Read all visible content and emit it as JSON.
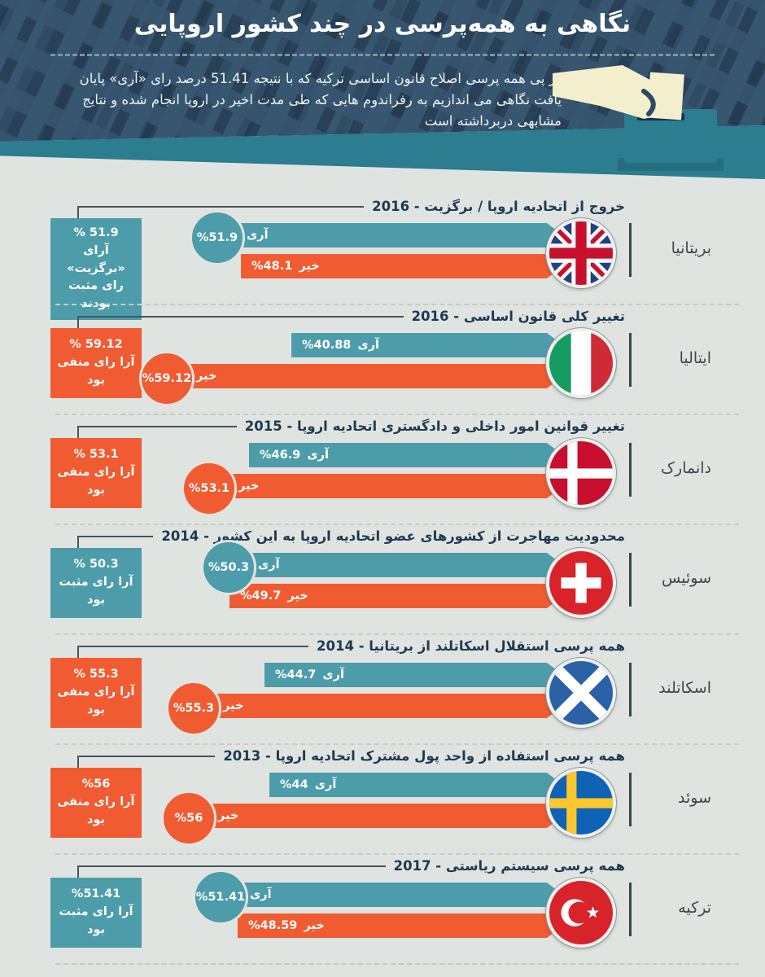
{
  "header": {
    "title": "نگاهی به همه‌پرسی در چند کشور اروپایی",
    "description": "در پی همه پرسی اصلاح قانون اساسی ترکیه که با نتیجه 51.41 درصد رای «آری» پایان یافت نگاهی می اندازیم به رفراندوم هایی که طی مدت اخیر در اروپا انجام شده و نتایج مشابهی دربرداشته است"
  },
  "labels": {
    "yes": "آری",
    "no": "خیر"
  },
  "colors": {
    "yes": "#4d9caa",
    "no": "#f15b31",
    "header_bg": "#375670",
    "band": "#2b7d8f",
    "page_bg": "#e0e4e1"
  },
  "sections": [
    {
      "country": "بریتانیا",
      "title": "خروج از اتحادیه اروپا / برگزیت - 2016",
      "yes": {
        "value": 51.9,
        "display": "%51.9",
        "winner": true
      },
      "no": {
        "value": 48.1,
        "display": "%48.1",
        "winner": false
      },
      "summary": {
        "color": "yes",
        "lines": [
          "% 51.9",
          "آرای «برگزیت»",
          "رای مثبت بودند"
        ]
      }
    },
    {
      "country": "ایتالیا",
      "title": "تغییر کلی قانون اساسی - 2016",
      "yes": {
        "value": 40.88,
        "display": "%40.88",
        "winner": false
      },
      "no": {
        "value": 59.12,
        "display": "%59.12",
        "winner": true
      },
      "summary": {
        "color": "no",
        "lines": [
          "% 59.12",
          "آرا رای منفی بود"
        ]
      }
    },
    {
      "country": "دانمارک",
      "title": "تغییر قوانین امور داخلی و دادگستری اتحادیه اروپا - 2015",
      "yes": {
        "value": 46.9,
        "display": "%46.9",
        "winner": false
      },
      "no": {
        "value": 53.1,
        "display": "%53.1",
        "winner": true
      },
      "summary": {
        "color": "no",
        "lines": [
          "% 53.1",
          "آرا رای منفی بود"
        ]
      }
    },
    {
      "country": "سوئیس",
      "title": "محدودیت مهاجرت از کشورهای عضو اتحادیه اروپا به این کشور - 2014",
      "yes": {
        "value": 50.3,
        "display": "%50.3",
        "winner": true
      },
      "no": {
        "value": 49.7,
        "display": "%49.7",
        "winner": false
      },
      "summary": {
        "color": "yes",
        "lines": [
          "% 50.3",
          "آرا رای مثبت بود"
        ]
      }
    },
    {
      "country": "اسکاتلند",
      "title": "همه پرسی استقلال اسکاتلند از بریتانیا - 2014",
      "yes": {
        "value": 44.7,
        "display": "%44.7",
        "winner": false
      },
      "no": {
        "value": 55.3,
        "display": "%55.3",
        "winner": true
      },
      "summary": {
        "color": "no",
        "lines": [
          "% 55.3",
          "آرا رای منفی بود"
        ]
      }
    },
    {
      "country": "سوئد",
      "title": "همه پرسی استفاده از واحد پول مشترک اتحادیه اروپا - 2013",
      "yes": {
        "value": 44,
        "display": "%44",
        "winner": false
      },
      "no": {
        "value": 56,
        "display": "%56",
        "winner": true
      },
      "summary": {
        "color": "no",
        "lines": [
          "%56",
          "آرا رای منفی بود"
        ]
      }
    },
    {
      "country": "ترکیه",
      "title": "همه پرسی سیستم ریاستی - 2017",
      "yes": {
        "value": 51.41,
        "display": "%51.41",
        "winner": true
      },
      "no": {
        "value": 48.59,
        "display": "%48.59",
        "winner": false
      },
      "summary": {
        "color": "yes",
        "lines": [
          "%51.41",
          "آرا رای مثبت بود"
        ]
      }
    }
  ],
  "chart_data": {
    "type": "bar",
    "orientation": "horizontal",
    "title": "نگاهی به همه‌پرسی در چند کشور اروپایی",
    "categories": [
      "بریتانیا",
      "ایتالیا",
      "دانمارک",
      "سوئیس",
      "اسکاتلند",
      "سوئد",
      "ترکیه"
    ],
    "series": [
      {
        "name": "آری",
        "color": "#4d9caa",
        "values": [
          51.9,
          40.88,
          46.9,
          50.3,
          44.7,
          44,
          51.41
        ]
      },
      {
        "name": "خیر",
        "color": "#f15b31",
        "values": [
          48.1,
          59.12,
          53.1,
          49.7,
          55.3,
          56,
          48.59
        ]
      }
    ],
    "topics": [
      "خروج از اتحادیه اروپا / برگزیت",
      "تغییر کلی قانون اساسی",
      "تغییر قوانین امور داخلی و دادگستری اتحادیه اروپا",
      "محدودیت مهاجرت از کشورهای عضو اتحادیه اروپا به این کشور",
      "همه پرسی استقلال اسکاتلند از بریتانیا",
      "همه پرسی استفاده از واحد پول مشترک اتحادیه اروپا",
      "همه پرسی سیستم ریاستی"
    ],
    "years": [
      2016,
      2016,
      2015,
      2014,
      2014,
      2013,
      2017
    ],
    "winners": [
      "آری",
      "خیر",
      "خیر",
      "آری",
      "خیر",
      "خیر",
      "آری"
    ],
    "value_unit": "percent",
    "xlim": [
      0,
      100
    ],
    "legend_position": "in-bar"
  }
}
